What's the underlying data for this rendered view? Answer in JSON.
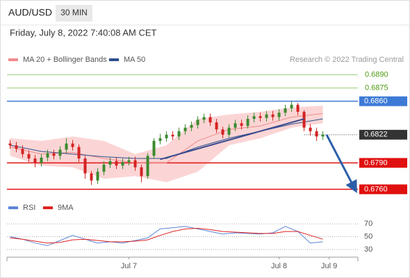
{
  "header": {
    "symbol": "AUD/USD",
    "interval": "30 MIN",
    "timestamp": "Friday, July 8, 2022 7:40:08 AM CET",
    "source": "Research © 2022 Trading Central"
  },
  "chart_data": [
    {
      "type": "candlestick",
      "xlim": [
        -0.5,
        55.6
      ],
      "ylim": [
        0.6754,
        0.69
      ],
      "up_color": "#3b8a2e",
      "down_color": "#d42222",
      "candles": {
        "open": [
          0.6812,
          0.681,
          0.6806,
          0.68,
          0.6795,
          0.679,
          0.6796,
          0.6801,
          0.6798,
          0.6805,
          0.6812,
          0.6808,
          0.6795,
          0.6778,
          0.677,
          0.678,
          0.6788,
          0.6792,
          0.6787,
          0.6791,
          0.6793,
          0.6785,
          0.6775,
          0.6798,
          0.6815,
          0.6818,
          0.6822,
          0.682,
          0.6826,
          0.683,
          0.6833,
          0.6839,
          0.6842,
          0.6836,
          0.6828,
          0.6822,
          0.683,
          0.6835,
          0.6832,
          0.684,
          0.6843,
          0.6841,
          0.6845,
          0.6842,
          0.6847,
          0.6852,
          0.6856,
          0.6848,
          0.683,
          0.6826,
          0.682
        ],
        "high": [
          0.6816,
          0.6814,
          0.681,
          0.6804,
          0.6799,
          0.68,
          0.6805,
          0.6805,
          0.6809,
          0.6818,
          0.6816,
          0.6811,
          0.6798,
          0.6781,
          0.6784,
          0.6792,
          0.6796,
          0.6796,
          0.6795,
          0.6797,
          0.6797,
          0.6788,
          0.6801,
          0.6818,
          0.6823,
          0.6826,
          0.6826,
          0.683,
          0.6834,
          0.6837,
          0.6843,
          0.6846,
          0.6846,
          0.684,
          0.6831,
          0.6834,
          0.6839,
          0.6839,
          0.6844,
          0.6847,
          0.6847,
          0.6849,
          0.6849,
          0.6851,
          0.6856,
          0.686,
          0.6858,
          0.685,
          0.6834,
          0.683,
          0.6826
        ],
        "low": [
          0.6806,
          0.6802,
          0.6796,
          0.6791,
          0.6785,
          0.6786,
          0.6792,
          0.6794,
          0.6794,
          0.6801,
          0.6804,
          0.6791,
          0.6772,
          0.6765,
          0.6766,
          0.6776,
          0.6784,
          0.6783,
          0.6783,
          0.6787,
          0.6781,
          0.6768,
          0.6772,
          0.6795,
          0.6811,
          0.6814,
          0.6816,
          0.6816,
          0.6822,
          0.6826,
          0.6829,
          0.6835,
          0.6832,
          0.6824,
          0.6818,
          0.6819,
          0.6826,
          0.6828,
          0.6829,
          0.6836,
          0.6837,
          0.6837,
          0.6838,
          0.6838,
          0.6843,
          0.6848,
          0.6844,
          0.6826,
          0.6821,
          0.6815,
          0.6816
        ],
        "close": [
          0.681,
          0.6806,
          0.68,
          0.6795,
          0.679,
          0.6796,
          0.6801,
          0.6798,
          0.6805,
          0.6812,
          0.6808,
          0.6795,
          0.6778,
          0.677,
          0.678,
          0.6788,
          0.6792,
          0.6787,
          0.6791,
          0.6793,
          0.6785,
          0.6775,
          0.6798,
          0.6815,
          0.6818,
          0.6822,
          0.682,
          0.6826,
          0.683,
          0.6833,
          0.6839,
          0.6842,
          0.6836,
          0.6828,
          0.6822,
          0.683,
          0.6835,
          0.6832,
          0.684,
          0.6843,
          0.6841,
          0.6845,
          0.6842,
          0.6847,
          0.6852,
          0.6856,
          0.6848,
          0.683,
          0.6826,
          0.682,
          0.6822
        ]
      },
      "series": [
        {
          "name": "MA 20 + Bollinger Bands",
          "color": "#f08a8a",
          "band_color": "#fbd5d5",
          "x": [
            0,
            5,
            10,
            15,
            20,
            25,
            30,
            35,
            40,
            45,
            50
          ],
          "values": [
            0.6808,
            0.68,
            0.6802,
            0.6795,
            0.679,
            0.679,
            0.6815,
            0.6828,
            0.6832,
            0.6842,
            0.6846
          ],
          "upper": [
            0.6818,
            0.6815,
            0.682,
            0.6815,
            0.68,
            0.681,
            0.684,
            0.6845,
            0.6848,
            0.6853,
            0.6855
          ],
          "lower": [
            0.6798,
            0.6787,
            0.6785,
            0.6772,
            0.6775,
            0.6768,
            0.678,
            0.681,
            0.6818,
            0.683,
            0.6835
          ]
        },
        {
          "name": "MA 50",
          "color": "#2b4f8e",
          "x": [
            0,
            5,
            10,
            15,
            20,
            25,
            30,
            35,
            40,
            45,
            50
          ],
          "values": [
            0.681,
            0.6803,
            0.68,
            0.6797,
            0.6795,
            0.6795,
            0.6808,
            0.6818,
            0.6826,
            0.6834,
            0.684
          ]
        }
      ],
      "trendline": {
        "color": "#3a4a8f",
        "x": [
          24,
          47
        ],
        "y": [
          0.6794,
          0.684
        ]
      },
      "arrow": {
        "color": "#2a5ea8",
        "x": [
          50.6,
          55
        ],
        "y": [
          0.6822,
          0.6762
        ]
      },
      "levels": [
        {
          "value": 0.689,
          "label": "0.6890",
          "color": "#9ccd7a",
          "text_color": "#4e9a14",
          "style": "plain"
        },
        {
          "value": 0.6875,
          "label": "0.6875",
          "color": "#9ccd7a",
          "text_color": "#4e9a14",
          "style": "plain"
        },
        {
          "value": 0.686,
          "label": "0.6860",
          "color": "#3d7ad6",
          "text_color": "#ffffff",
          "style": "box"
        },
        {
          "value": 0.6822,
          "label": "0.6822",
          "color": "#333333",
          "text_color": "#ffffff",
          "style": "dotted"
        },
        {
          "value": 0.679,
          "label": "0.6790",
          "color": "#e01010",
          "text_color": "#ffffff",
          "style": "box"
        },
        {
          "value": 0.676,
          "label": "0.6760",
          "color": "#e01010",
          "text_color": "#ffffff",
          "style": "box"
        }
      ]
    },
    {
      "type": "line",
      "xlim": [
        -0.5,
        55.6
      ],
      "ylim": [
        18,
        82
      ],
      "yticks": [
        70,
        50,
        30
      ],
      "grid": true,
      "xticks": [
        {
          "value": 19,
          "label": "Jul 7"
        },
        {
          "value": 43,
          "label": "Jul 8"
        },
        {
          "value": 51,
          "label": "Jul 9"
        }
      ],
      "series": [
        {
          "name": "RSI",
          "color": "#5b84d6",
          "x": [
            0,
            2,
            4,
            6,
            8,
            10,
            12,
            14,
            16,
            18,
            20,
            22,
            24,
            26,
            28,
            30,
            32,
            34,
            36,
            38,
            40,
            42,
            44,
            46,
            48,
            50
          ],
          "values": [
            50,
            46,
            40,
            36,
            44,
            52,
            46,
            40,
            42,
            40,
            44,
            48,
            62,
            64,
            66,
            62,
            58,
            54,
            56,
            55,
            54,
            56,
            66,
            58,
            40,
            42
          ]
        },
        {
          "name": "9MA",
          "color": "#e02020",
          "x": [
            0,
            2,
            4,
            6,
            8,
            10,
            12,
            14,
            16,
            18,
            20,
            22,
            24,
            26,
            28,
            30,
            32,
            34,
            36,
            38,
            40,
            42,
            44,
            46,
            48,
            50
          ],
          "values": [
            48,
            46,
            43,
            40,
            41,
            45,
            46,
            44,
            42,
            42,
            43,
            45,
            52,
            58,
            62,
            63,
            61,
            58,
            57,
            56,
            55,
            55,
            58,
            58,
            52,
            46
          ]
        }
      ]
    }
  ]
}
